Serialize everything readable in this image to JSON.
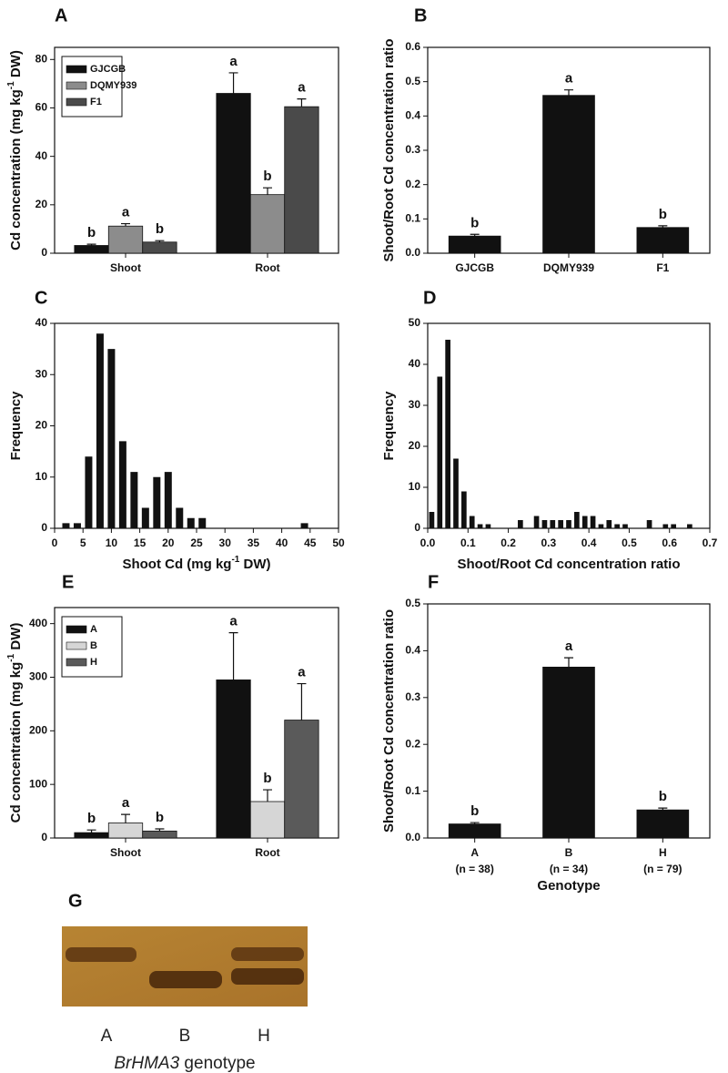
{
  "chart_data": [
    {
      "panel": "A",
      "type": "bar",
      "ylabel": [
        "Cd concentration (mg kg",
        "-1",
        " DW)"
      ],
      "categories": [
        "Shoot",
        "Root"
      ],
      "series": [
        {
          "name": "GJCGB",
          "color": "#111111",
          "values": [
            3.2,
            66
          ],
          "errors": [
            0.5,
            8.5
          ],
          "letters": [
            "b",
            "a"
          ]
        },
        {
          "name": "DQMY939",
          "color": "#8c8c8c",
          "values": [
            11.2,
            24.2
          ],
          "errors": [
            1,
            2.8
          ],
          "letters": [
            "a",
            "b"
          ]
        },
        {
          "name": "F1",
          "color": "#4a4a4a",
          "values": [
            4.6,
            60.5
          ],
          "errors": [
            0.6,
            3.2
          ],
          "letters": [
            "b",
            "a"
          ]
        }
      ],
      "ylim": [
        0,
        85
      ],
      "yticks": [
        0,
        20,
        40,
        60,
        80
      ],
      "legend": "upper left"
    },
    {
      "panel": "B",
      "type": "bar",
      "ylabel": "Shoot/Root Cd concentration ratio",
      "categories": [
        "GJCGB",
        "DQMY939",
        "F1"
      ],
      "color": "#111111",
      "values": [
        0.05,
        0.46,
        0.075
      ],
      "errors": [
        0.005,
        0.016,
        0.005
      ],
      "letters": [
        "b",
        "a",
        "b"
      ],
      "ylim": [
        0,
        0.6
      ],
      "yticks": [
        {
          "value": 0,
          "label": "0.0"
        },
        0.1,
        0.2,
        0.3,
        0.4,
        0.5,
        0.6
      ]
    },
    {
      "panel": "C",
      "type": "histogram",
      "xlabel": [
        "Shoot Cd (mg kg",
        "-1",
        " DW)"
      ],
      "ylabel": "Frequency",
      "color": "#111111",
      "bins": [
        1,
        3,
        5,
        7,
        9,
        11,
        13,
        15,
        17,
        19,
        21,
        23,
        25,
        27,
        29,
        31,
        33,
        35,
        37,
        39,
        41,
        43,
        45
      ],
      "values": [
        1,
        1,
        14,
        38,
        35,
        17,
        11,
        4,
        10,
        11,
        4,
        2,
        2,
        0,
        0,
        0,
        0,
        0,
        0,
        0,
        0,
        1
      ],
      "xlim": [
        0,
        50
      ],
      "xticks": [
        0,
        5,
        10,
        15,
        20,
        25,
        30,
        35,
        40,
        45,
        50
      ],
      "ylim": [
        0,
        40
      ],
      "yticks": [
        0,
        10,
        20,
        30,
        40
      ]
    },
    {
      "panel": "D",
      "type": "histogram",
      "xlabel": "Shoot/Root Cd concentration ratio",
      "ylabel": "Frequency",
      "color": "#111111",
      "bins": [
        0,
        0.02,
        0.04,
        0.06,
        0.08,
        0.1,
        0.12,
        0.14,
        0.16,
        0.18,
        0.2,
        0.22,
        0.24,
        0.26,
        0.28,
        0.3,
        0.32,
        0.34,
        0.36,
        0.38,
        0.4,
        0.42,
        0.44,
        0.46,
        0.48,
        0.5,
        0.52,
        0.54,
        0.56,
        0.58,
        0.6,
        0.62,
        0.64,
        0.66
      ],
      "values": [
        4,
        37,
        46,
        17,
        9,
        3,
        1,
        1,
        0,
        0,
        0,
        2,
        0,
        3,
        2,
        2,
        2,
        2,
        4,
        3,
        3,
        1,
        2,
        1,
        1,
        0,
        0,
        2,
        0,
        1,
        1,
        0,
        1
      ],
      "xlim": [
        0,
        0.7
      ],
      "xticks": [
        {
          "value": 0,
          "label": "0.0"
        },
        0.1,
        0.2,
        0.3,
        0.4,
        0.5,
        0.6,
        0.7
      ],
      "ylim": [
        0,
        50
      ],
      "yticks": [
        0,
        10,
        20,
        30,
        40,
        50
      ]
    },
    {
      "panel": "E",
      "type": "bar",
      "ylabel": [
        "Cd concentration (mg kg",
        "-1",
        " DW)"
      ],
      "categories": [
        "Shoot",
        "Root"
      ],
      "series": [
        {
          "name": "A",
          "color": "#111111",
          "values": [
            10,
            295
          ],
          "errors": [
            5,
            88
          ],
          "letters": [
            "b",
            "a"
          ]
        },
        {
          "name": "B",
          "color": "#d6d6d6",
          "values": [
            28,
            68
          ],
          "errors": [
            16,
            22
          ],
          "letters": [
            "a",
            "b"
          ]
        },
        {
          "name": "H",
          "color": "#5a5a5a",
          "values": [
            13,
            220
          ],
          "errors": [
            4,
            68
          ],
          "letters": [
            "b",
            "a"
          ]
        }
      ],
      "ylim": [
        0,
        430
      ],
      "yticks": [
        0,
        100,
        200,
        300,
        400
      ],
      "legend": "upper left"
    },
    {
      "panel": "F",
      "type": "bar",
      "ylabel": "Shoot/Root Cd concentration ratio",
      "xlabel": "Genotype",
      "categories": [
        "A",
        "B",
        "H"
      ],
      "sample_sizes": [
        "(n = 38)",
        "(n = 34)",
        "(n = 79)"
      ],
      "color": "#111111",
      "values": [
        0.03,
        0.365,
        0.06
      ],
      "errors": [
        0.003,
        0.02,
        0.004
      ],
      "letters": [
        "b",
        "a",
        "b"
      ],
      "ylim": [
        0,
        0.5
      ],
      "yticks": [
        {
          "value": 0,
          "label": "0.0"
        },
        0.1,
        0.2,
        0.3,
        0.4,
        0.5
      ]
    }
  ],
  "gel": {
    "panel": "G",
    "lanes": [
      "A",
      "B",
      "H"
    ],
    "gene": "BrHMA3",
    "caption": " genotype"
  }
}
